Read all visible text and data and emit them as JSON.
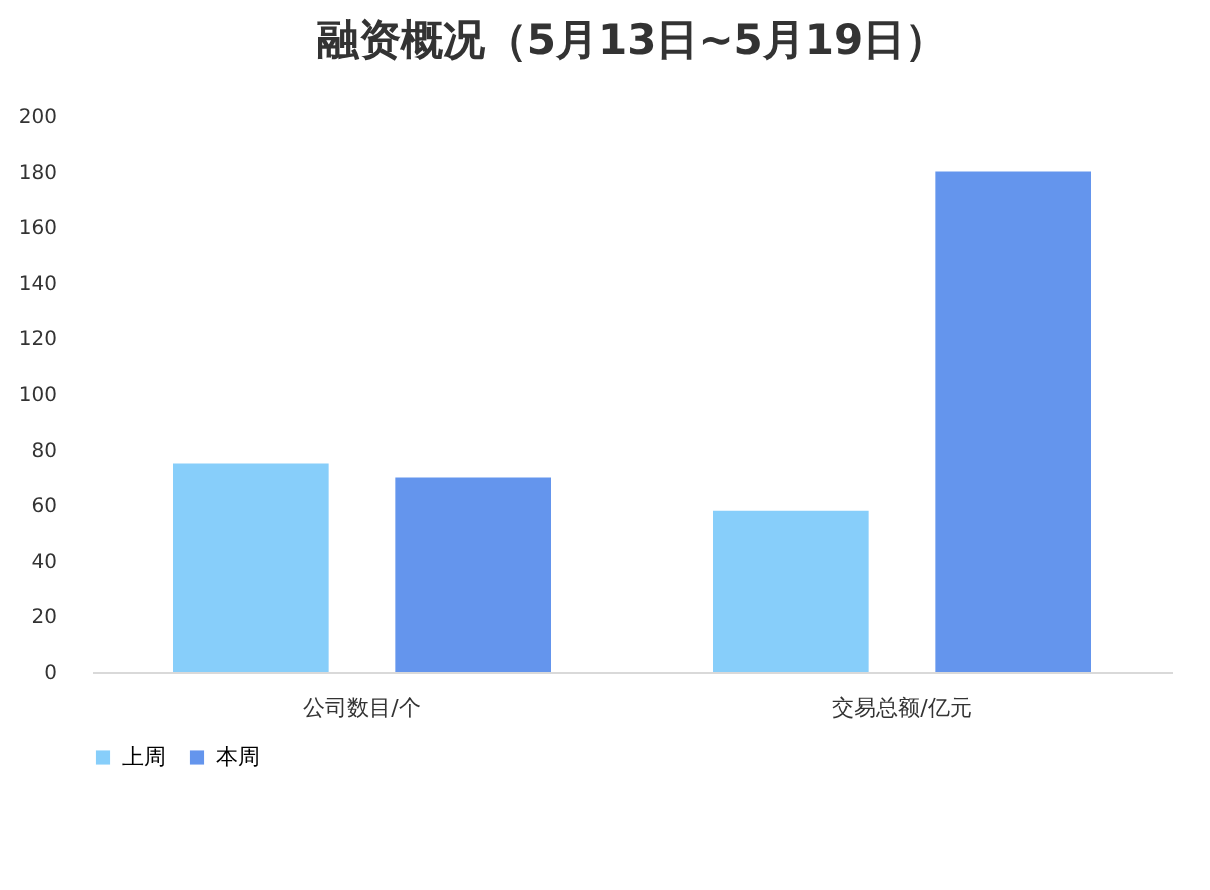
{
  "chart_data": {
    "type": "bar",
    "title": "融资概况（5月13日~5月19日）",
    "categories": [
      "公司数目/个",
      "交易总额/亿元"
    ],
    "series": [
      {
        "name": "上周",
        "color": "#87cefa",
        "values": [
          75,
          58
        ]
      },
      {
        "name": "本周",
        "color": "#6495ed",
        "values": [
          70,
          180
        ]
      }
    ],
    "ylim": [
      0,
      200
    ],
    "yticks": [
      0,
      20,
      40,
      60,
      80,
      100,
      120,
      140,
      160,
      180,
      200
    ],
    "grid": false,
    "legend": "bottom"
  }
}
